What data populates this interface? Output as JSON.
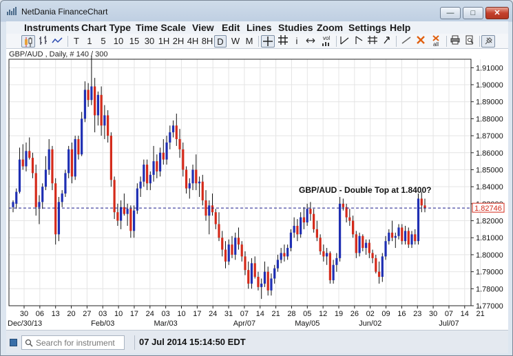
{
  "window": {
    "title": "NetDania FinanceChart"
  },
  "menu": [
    "Instruments",
    "Chart Type",
    "Time Scale",
    "View",
    "Edit",
    "Lines",
    "Studies",
    "Zoom",
    "Settings",
    "Help"
  ],
  "toolbar": {
    "timescales": [
      "T",
      "1",
      "5",
      "10",
      "15",
      "30",
      "1H",
      "2H",
      "4H",
      "8H",
      "D",
      "W",
      "M"
    ],
    "selected_timescale": "D",
    "vol_label": "vol",
    "all_label": "all"
  },
  "chart": {
    "subtitle": "GBP/AUD , Daily, # 140 / 300",
    "annotation": "GBP/AUD - Double Top at 1.8400?",
    "current_price": "1.82746",
    "current_price_value": 1.82746
  },
  "chart_data": {
    "type": "candlestick",
    "y_tick_labels": [
      "1.91000",
      "1.90000",
      "1.89000",
      "1.88000",
      "1.87000",
      "1.86000",
      "1.85000",
      "1.84000",
      "1.83000",
      "1.82000",
      "1.81000",
      "1.80000",
      "1.79000",
      "1.78000",
      "1.77000"
    ],
    "ylim": [
      1.77,
      1.915
    ],
    "x_day_labels": [
      "30",
      "06",
      "13",
      "20",
      "27",
      "03",
      "10",
      "17",
      "24",
      "03",
      "10",
      "17",
      "24",
      "31",
      "07",
      "14",
      "21",
      "28",
      "05",
      "12",
      "19",
      "26",
      "02",
      "09",
      "16",
      "23",
      "30",
      "07",
      "14",
      "21"
    ],
    "x_month_labels": [
      "Dec/30/13",
      "Feb/03",
      "Mar/03",
      "Apr/07",
      "May/05",
      "Jun/02",
      "Jul/07"
    ],
    "bull_color": "#1f2fb3",
    "bear_color": "#d42a1a",
    "grid": true,
    "candles": [
      {
        "o": 1.828,
        "h": 1.832,
        "l": 1.825,
        "c": 1.831
      },
      {
        "o": 1.83,
        "h": 1.839,
        "l": 1.827,
        "c": 1.837
      },
      {
        "o": 1.837,
        "h": 1.863,
        "l": 1.836,
        "c": 1.856
      },
      {
        "o": 1.856,
        "h": 1.865,
        "l": 1.85,
        "c": 1.852
      },
      {
        "o": 1.852,
        "h": 1.866,
        "l": 1.849,
        "c": 1.861
      },
      {
        "o": 1.861,
        "h": 1.869,
        "l": 1.856,
        "c": 1.857
      },
      {
        "o": 1.857,
        "h": 1.86,
        "l": 1.845,
        "c": 1.848
      },
      {
        "o": 1.848,
        "h": 1.853,
        "l": 1.823,
        "c": 1.828
      },
      {
        "o": 1.828,
        "h": 1.835,
        "l": 1.818,
        "c": 1.831
      },
      {
        "o": 1.831,
        "h": 1.842,
        "l": 1.827,
        "c": 1.84
      },
      {
        "o": 1.84,
        "h": 1.858,
        "l": 1.838,
        "c": 1.85
      },
      {
        "o": 1.85,
        "h": 1.868,
        "l": 1.847,
        "c": 1.862
      },
      {
        "o": 1.862,
        "h": 1.864,
        "l": 1.838,
        "c": 1.842
      },
      {
        "o": 1.842,
        "h": 1.845,
        "l": 1.806,
        "c": 1.812
      },
      {
        "o": 1.812,
        "h": 1.834,
        "l": 1.808,
        "c": 1.831
      },
      {
        "o": 1.831,
        "h": 1.838,
        "l": 1.828,
        "c": 1.836
      },
      {
        "o": 1.836,
        "h": 1.85,
        "l": 1.834,
        "c": 1.848
      },
      {
        "o": 1.848,
        "h": 1.864,
        "l": 1.845,
        "c": 1.862
      },
      {
        "o": 1.862,
        "h": 1.866,
        "l": 1.842,
        "c": 1.846
      },
      {
        "o": 1.846,
        "h": 1.87,
        "l": 1.844,
        "c": 1.868
      },
      {
        "o": 1.868,
        "h": 1.87,
        "l": 1.856,
        "c": 1.859
      },
      {
        "o": 1.859,
        "h": 1.884,
        "l": 1.858,
        "c": 1.88
      },
      {
        "o": 1.88,
        "h": 1.902,
        "l": 1.878,
        "c": 1.897
      },
      {
        "o": 1.897,
        "h": 1.901,
        "l": 1.887,
        "c": 1.891
      },
      {
        "o": 1.891,
        "h": 1.917,
        "l": 1.888,
        "c": 1.899
      },
      {
        "o": 1.899,
        "h": 1.904,
        "l": 1.872,
        "c": 1.882
      },
      {
        "o": 1.882,
        "h": 1.896,
        "l": 1.876,
        "c": 1.894
      },
      {
        "o": 1.894,
        "h": 1.899,
        "l": 1.87,
        "c": 1.876
      },
      {
        "o": 1.876,
        "h": 1.888,
        "l": 1.868,
        "c": 1.882
      },
      {
        "o": 1.882,
        "h": 1.885,
        "l": 1.866,
        "c": 1.87
      },
      {
        "o": 1.87,
        "h": 1.872,
        "l": 1.84,
        "c": 1.844
      },
      {
        "o": 1.844,
        "h": 1.846,
        "l": 1.821,
        "c": 1.825
      },
      {
        "o": 1.825,
        "h": 1.83,
        "l": 1.817,
        "c": 1.82
      },
      {
        "o": 1.82,
        "h": 1.832,
        "l": 1.815,
        "c": 1.828
      },
      {
        "o": 1.828,
        "h": 1.836,
        "l": 1.823,
        "c": 1.824
      },
      {
        "o": 1.824,
        "h": 1.83,
        "l": 1.817,
        "c": 1.827
      },
      {
        "o": 1.827,
        "h": 1.829,
        "l": 1.81,
        "c": 1.814
      },
      {
        "o": 1.814,
        "h": 1.829,
        "l": 1.81,
        "c": 1.826
      },
      {
        "o": 1.826,
        "h": 1.842,
        "l": 1.824,
        "c": 1.839
      },
      {
        "o": 1.839,
        "h": 1.846,
        "l": 1.834,
        "c": 1.843
      },
      {
        "o": 1.843,
        "h": 1.856,
        "l": 1.84,
        "c": 1.853
      },
      {
        "o": 1.853,
        "h": 1.856,
        "l": 1.838,
        "c": 1.842
      },
      {
        "o": 1.842,
        "h": 1.849,
        "l": 1.838,
        "c": 1.847
      },
      {
        "o": 1.847,
        "h": 1.864,
        "l": 1.843,
        "c": 1.855
      },
      {
        "o": 1.855,
        "h": 1.859,
        "l": 1.845,
        "c": 1.849
      },
      {
        "o": 1.849,
        "h": 1.863,
        "l": 1.846,
        "c": 1.86
      },
      {
        "o": 1.86,
        "h": 1.868,
        "l": 1.853,
        "c": 1.856
      },
      {
        "o": 1.856,
        "h": 1.87,
        "l": 1.853,
        "c": 1.866
      },
      {
        "o": 1.866,
        "h": 1.876,
        "l": 1.862,
        "c": 1.872
      },
      {
        "o": 1.872,
        "h": 1.879,
        "l": 1.869,
        "c": 1.876
      },
      {
        "o": 1.876,
        "h": 1.883,
        "l": 1.864,
        "c": 1.868
      },
      {
        "o": 1.868,
        "h": 1.874,
        "l": 1.857,
        "c": 1.862
      },
      {
        "o": 1.862,
        "h": 1.866,
        "l": 1.846,
        "c": 1.85
      },
      {
        "o": 1.85,
        "h": 1.852,
        "l": 1.836,
        "c": 1.839
      },
      {
        "o": 1.839,
        "h": 1.845,
        "l": 1.833,
        "c": 1.842
      },
      {
        "o": 1.842,
        "h": 1.853,
        "l": 1.838,
        "c": 1.85
      },
      {
        "o": 1.85,
        "h": 1.859,
        "l": 1.838,
        "c": 1.842
      },
      {
        "o": 1.842,
        "h": 1.846,
        "l": 1.834,
        "c": 1.843
      },
      {
        "o": 1.843,
        "h": 1.847,
        "l": 1.829,
        "c": 1.832
      },
      {
        "o": 1.832,
        "h": 1.838,
        "l": 1.82,
        "c": 1.823
      },
      {
        "o": 1.823,
        "h": 1.832,
        "l": 1.812,
        "c": 1.829
      },
      {
        "o": 1.829,
        "h": 1.836,
        "l": 1.823,
        "c": 1.825
      },
      {
        "o": 1.825,
        "h": 1.827,
        "l": 1.815,
        "c": 1.818
      },
      {
        "o": 1.818,
        "h": 1.825,
        "l": 1.808,
        "c": 1.81
      },
      {
        "o": 1.81,
        "h": 1.814,
        "l": 1.799,
        "c": 1.803
      },
      {
        "o": 1.803,
        "h": 1.808,
        "l": 1.792,
        "c": 1.796
      },
      {
        "o": 1.796,
        "h": 1.809,
        "l": 1.794,
        "c": 1.806
      },
      {
        "o": 1.806,
        "h": 1.811,
        "l": 1.798,
        "c": 1.8
      },
      {
        "o": 1.8,
        "h": 1.813,
        "l": 1.797,
        "c": 1.81
      },
      {
        "o": 1.81,
        "h": 1.816,
        "l": 1.803,
        "c": 1.806
      },
      {
        "o": 1.806,
        "h": 1.808,
        "l": 1.796,
        "c": 1.799
      },
      {
        "o": 1.799,
        "h": 1.802,
        "l": 1.788,
        "c": 1.791
      },
      {
        "o": 1.791,
        "h": 1.796,
        "l": 1.78,
        "c": 1.783
      },
      {
        "o": 1.783,
        "h": 1.798,
        "l": 1.78,
        "c": 1.795
      },
      {
        "o": 1.795,
        "h": 1.799,
        "l": 1.786,
        "c": 1.787
      },
      {
        "o": 1.787,
        "h": 1.79,
        "l": 1.779,
        "c": 1.781
      },
      {
        "o": 1.781,
        "h": 1.786,
        "l": 1.774,
        "c": 1.783
      },
      {
        "o": 1.783,
        "h": 1.796,
        "l": 1.781,
        "c": 1.79
      },
      {
        "o": 1.79,
        "h": 1.793,
        "l": 1.776,
        "c": 1.779
      },
      {
        "o": 1.779,
        "h": 1.789,
        "l": 1.776,
        "c": 1.786
      },
      {
        "o": 1.786,
        "h": 1.794,
        "l": 1.783,
        "c": 1.792
      },
      {
        "o": 1.792,
        "h": 1.8,
        "l": 1.79,
        "c": 1.797
      },
      {
        "o": 1.797,
        "h": 1.804,
        "l": 1.795,
        "c": 1.801
      },
      {
        "o": 1.801,
        "h": 1.806,
        "l": 1.796,
        "c": 1.799
      },
      {
        "o": 1.799,
        "h": 1.806,
        "l": 1.797,
        "c": 1.804
      },
      {
        "o": 1.804,
        "h": 1.815,
        "l": 1.802,
        "c": 1.813
      },
      {
        "o": 1.813,
        "h": 1.822,
        "l": 1.81,
        "c": 1.817
      },
      {
        "o": 1.817,
        "h": 1.821,
        "l": 1.808,
        "c": 1.812
      },
      {
        "o": 1.812,
        "h": 1.825,
        "l": 1.81,
        "c": 1.822
      },
      {
        "o": 1.822,
        "h": 1.828,
        "l": 1.815,
        "c": 1.819
      },
      {
        "o": 1.819,
        "h": 1.83,
        "l": 1.817,
        "c": 1.827
      },
      {
        "o": 1.827,
        "h": 1.831,
        "l": 1.82,
        "c": 1.824
      },
      {
        "o": 1.824,
        "h": 1.827,
        "l": 1.813,
        "c": 1.815
      },
      {
        "o": 1.815,
        "h": 1.82,
        "l": 1.808,
        "c": 1.81
      },
      {
        "o": 1.81,
        "h": 1.812,
        "l": 1.8,
        "c": 1.802
      },
      {
        "o": 1.802,
        "h": 1.806,
        "l": 1.796,
        "c": 1.799
      },
      {
        "o": 1.799,
        "h": 1.804,
        "l": 1.794,
        "c": 1.801
      },
      {
        "o": 1.801,
        "h": 1.802,
        "l": 1.783,
        "c": 1.785
      },
      {
        "o": 1.785,
        "h": 1.797,
        "l": 1.783,
        "c": 1.794
      },
      {
        "o": 1.794,
        "h": 1.801,
        "l": 1.79,
        "c": 1.798
      },
      {
        "o": 1.798,
        "h": 1.834,
        "l": 1.796,
        "c": 1.83
      },
      {
        "o": 1.83,
        "h": 1.833,
        "l": 1.826,
        "c": 1.828
      },
      {
        "o": 1.828,
        "h": 1.83,
        "l": 1.819,
        "c": 1.822
      },
      {
        "o": 1.822,
        "h": 1.827,
        "l": 1.817,
        "c": 1.82
      },
      {
        "o": 1.82,
        "h": 1.823,
        "l": 1.81,
        "c": 1.812
      },
      {
        "o": 1.812,
        "h": 1.814,
        "l": 1.798,
        "c": 1.801
      },
      {
        "o": 1.801,
        "h": 1.813,
        "l": 1.799,
        "c": 1.811
      },
      {
        "o": 1.811,
        "h": 1.812,
        "l": 1.802,
        "c": 1.804
      },
      {
        "o": 1.804,
        "h": 1.809,
        "l": 1.8,
        "c": 1.807
      },
      {
        "o": 1.807,
        "h": 1.809,
        "l": 1.798,
        "c": 1.801
      },
      {
        "o": 1.801,
        "h": 1.803,
        "l": 1.795,
        "c": 1.798
      },
      {
        "o": 1.798,
        "h": 1.8,
        "l": 1.789,
        "c": 1.79
      },
      {
        "o": 1.79,
        "h": 1.796,
        "l": 1.783,
        "c": 1.787
      },
      {
        "o": 1.787,
        "h": 1.801,
        "l": 1.784,
        "c": 1.799
      },
      {
        "o": 1.799,
        "h": 1.811,
        "l": 1.797,
        "c": 1.808
      },
      {
        "o": 1.808,
        "h": 1.815,
        "l": 1.806,
        "c": 1.813
      },
      {
        "o": 1.813,
        "h": 1.82,
        "l": 1.808,
        "c": 1.81
      },
      {
        "o": 1.81,
        "h": 1.813,
        "l": 1.804,
        "c": 1.811
      },
      {
        "o": 1.811,
        "h": 1.818,
        "l": 1.809,
        "c": 1.816
      },
      {
        "o": 1.816,
        "h": 1.818,
        "l": 1.806,
        "c": 1.808
      },
      {
        "o": 1.808,
        "h": 1.817,
        "l": 1.806,
        "c": 1.814
      },
      {
        "o": 1.814,
        "h": 1.816,
        "l": 1.804,
        "c": 1.806
      },
      {
        "o": 1.806,
        "h": 1.814,
        "l": 1.804,
        "c": 1.812
      },
      {
        "o": 1.812,
        "h": 1.815,
        "l": 1.806,
        "c": 1.808
      },
      {
        "o": 1.808,
        "h": 1.836,
        "l": 1.806,
        "c": 1.833
      },
      {
        "o": 1.833,
        "h": 1.837,
        "l": 1.825,
        "c": 1.829
      },
      {
        "o": 1.829,
        "h": 1.833,
        "l": 1.825,
        "c": 1.8275
      }
    ]
  }
}
